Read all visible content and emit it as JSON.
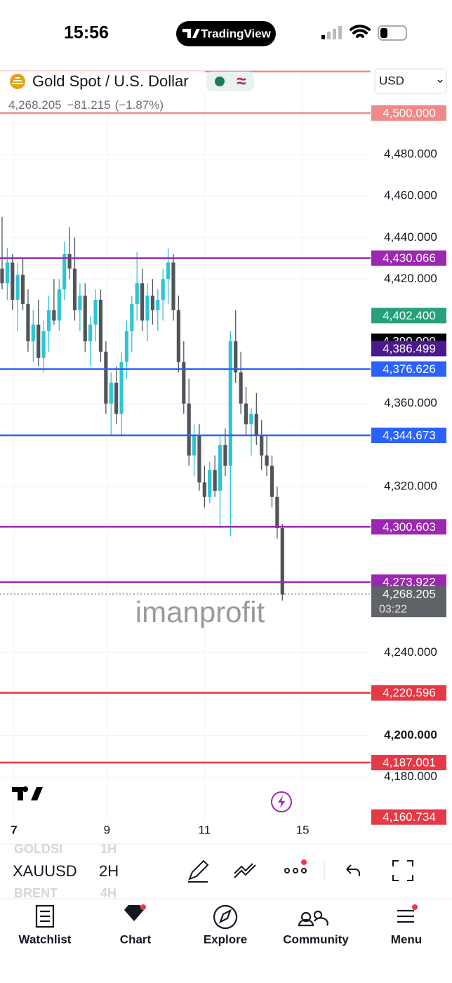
{
  "status_bar": {
    "time": "15:56",
    "app": "TradingView"
  },
  "header": {
    "symbol": "Gold Spot / U.S. Dollar",
    "price": "4,268.205",
    "change": "−81.215",
    "change_pct": "(−1.87%)",
    "currency": "USD"
  },
  "chart_data": {
    "type": "candlestick",
    "watermark": "imanprofit",
    "up_color": "#2ec4d6",
    "down_color": "#50555c",
    "x": [
      0,
      1,
      2,
      3,
      4,
      5,
      6,
      7,
      8,
      9,
      10,
      11,
      12,
      13,
      14,
      15,
      16,
      17,
      18,
      19,
      20,
      21,
      22,
      23,
      24,
      25,
      26,
      27,
      28,
      29,
      30,
      31,
      32,
      33,
      34,
      35,
      36,
      37,
      38,
      39,
      40,
      41,
      42,
      43,
      44,
      45,
      46,
      47,
      48,
      49,
      50,
      51,
      52,
      53,
      54
    ],
    "open": [
      4425,
      4418,
      4428,
      4410,
      4422,
      4408,
      4390,
      4398,
      4382,
      4395,
      4405,
      4400,
      4415,
      4432,
      4425,
      4405,
      4412,
      4390,
      4398,
      4410,
      4385,
      4360,
      4370,
      4355,
      4380,
      4395,
      4408,
      4418,
      4400,
      4412,
      4405,
      4410,
      4420,
      4428,
      4405,
      4380,
      4360,
      4335,
      4345,
      4322,
      4315,
      4328,
      4318,
      4340,
      4330,
      4390,
      4375,
      4360,
      4350,
      4355,
      4345,
      4335,
      4330,
      4315,
      4300
    ],
    "high": [
      4450,
      4435,
      4432,
      4428,
      4430,
      4415,
      4405,
      4410,
      4400,
      4412,
      4420,
      4420,
      4438,
      4445,
      4440,
      4418,
      4418,
      4402,
      4415,
      4415,
      4390,
      4375,
      4378,
      4385,
      4400,
      4412,
      4433,
      4425,
      4418,
      4420,
      4415,
      4425,
      4435,
      4432,
      4412,
      4390,
      4372,
      4350,
      4350,
      4330,
      4332,
      4335,
      4345,
      4348,
      4395,
      4405,
      4385,
      4368,
      4358,
      4365,
      4352,
      4345,
      4335,
      4320,
      4302
    ],
    "low": [
      4415,
      4410,
      4405,
      4395,
      4405,
      4385,
      4380,
      4378,
      4375,
      4385,
      4398,
      4395,
      4410,
      4420,
      4400,
      4395,
      4385,
      4378,
      4390,
      4380,
      4355,
      4345,
      4350,
      4345,
      4372,
      4385,
      4400,
      4395,
      4390,
      4398,
      4395,
      4400,
      4408,
      4400,
      4375,
      4355,
      4330,
      4325,
      4318,
      4310,
      4312,
      4315,
      4300,
      4325,
      4296,
      4370,
      4355,
      4345,
      4335,
      4340,
      4328,
      4325,
      4310,
      4295,
      4265
    ],
    "close": [
      4418,
      4428,
      4410,
      4422,
      4408,
      4390,
      4398,
      4382,
      4395,
      4405,
      4400,
      4415,
      4432,
      4425,
      4405,
      4412,
      4390,
      4398,
      4410,
      4385,
      4360,
      4370,
      4355,
      4380,
      4395,
      4408,
      4418,
      4400,
      4412,
      4405,
      4410,
      4420,
      4428,
      4405,
      4380,
      4360,
      4335,
      4345,
      4322,
      4315,
      4328,
      4318,
      4340,
      4330,
      4390,
      4375,
      4360,
      4350,
      4355,
      4345,
      4335,
      4330,
      4315,
      4300,
      4268
    ],
    "xlim": [
      -0.4,
      71
    ],
    "ylim": [
      4158.6,
      4521.3
    ],
    "xticks": [
      {
        "value": 2.3,
        "label": "7"
      },
      {
        "value": 20.2,
        "label": "9"
      },
      {
        "value": 39,
        "label": "11"
      },
      {
        "value": 57.9,
        "label": "15"
      }
    ],
    "yticks": [
      {
        "value": 4480,
        "label": "4,480.000"
      },
      {
        "value": 4460,
        "label": "4,460.000"
      },
      {
        "value": 4440,
        "label": "4,440.000"
      },
      {
        "value": 4420,
        "label": "4,420.000"
      },
      {
        "value": 4360,
        "label": "4,360.000"
      },
      {
        "value": 4320,
        "label": "4,320.000"
      },
      {
        "value": 4240,
        "label": "4,240.000"
      },
      {
        "value": 4200,
        "label": "4,200.000"
      },
      {
        "value": 4180,
        "label": "4,180.000"
      }
    ],
    "levels": [
      {
        "value": 4520,
        "color": "#f08a8a",
        "line": true
      },
      {
        "value": 4500,
        "label": "4,500.000",
        "color": "#f08a8a",
        "line": true
      },
      {
        "value": 4430.066,
        "label": "4,430.066",
        "color": "#9c27b0",
        "line": true
      },
      {
        "value": 4402.4,
        "label": "4,402.400",
        "color": "#26a17b",
        "line": false
      },
      {
        "value": 4390,
        "label": "4,390.000",
        "color": "#000000",
        "line": false
      },
      {
        "value": 4386.499,
        "label": "4,386.499",
        "color": "#4a1a8c",
        "line": false
      },
      {
        "value": 4376.626,
        "label": "4,376.626",
        "color": "#2962ff",
        "line": true
      },
      {
        "value": 4344.673,
        "label": "4,344.673",
        "color": "#2962ff",
        "line": true
      },
      {
        "value": 4300.603,
        "label": "4,300.603",
        "color": "#9c27b0",
        "line": true
      },
      {
        "value": 4273.922,
        "label": "4,273.922",
        "color": "#9c27b0",
        "line": true
      },
      {
        "value": 4220.596,
        "label": "4,220.596",
        "color": "#e53945",
        "line": true
      },
      {
        "value": 4187.001,
        "label": "4,187.001",
        "color": "#e53945",
        "line": true
      },
      {
        "value": 4160.734,
        "label": "4,160.734",
        "color": "#e53945",
        "line": false
      }
    ],
    "last_price": {
      "value": 4268.205,
      "label": "4,268.205",
      "countdown": "03:22",
      "color": "#5f6368"
    }
  },
  "toolbar": {
    "symbols": [
      "GOLDSI",
      "XAUUSD",
      "BRENT"
    ],
    "intervals": [
      "1H",
      "2H",
      "4H"
    ]
  },
  "nav": [
    "Watchlist",
    "Chart",
    "Explore",
    "Community",
    "Menu"
  ]
}
